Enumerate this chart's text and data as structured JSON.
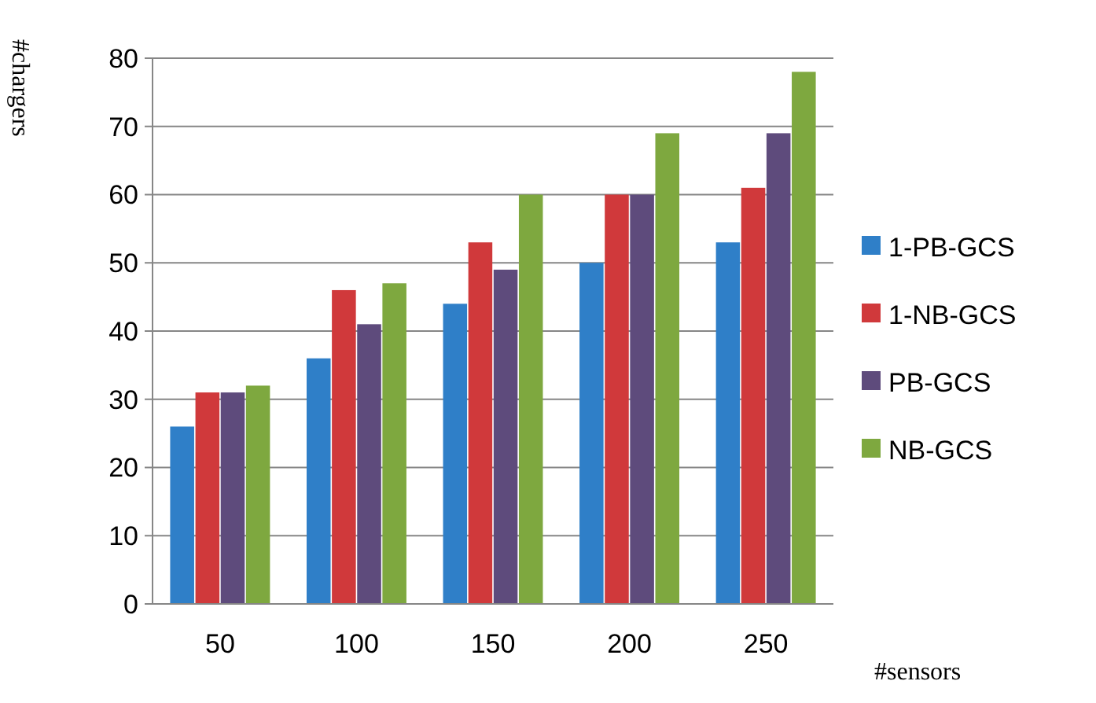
{
  "chart_data": {
    "type": "bar",
    "xlabel": "#sensors",
    "ylabel": "#chargers",
    "categories": [
      "50",
      "100",
      "150",
      "200",
      "250"
    ],
    "series": [
      {
        "name": "1-PB-GCS",
        "color": "#2f7fc8",
        "values": [
          26,
          36,
          44,
          50,
          53
        ]
      },
      {
        "name": "1-NB-GCS",
        "color": "#d0393b",
        "values": [
          31,
          46,
          53,
          60,
          61
        ]
      },
      {
        "name": "PB-GCS",
        "color": "#5e4b7c",
        "values": [
          31,
          41,
          49,
          60,
          69
        ]
      },
      {
        "name": "NB-GCS",
        "color": "#7ea83f",
        "values": [
          32,
          47,
          60,
          69,
          78
        ]
      }
    ],
    "ylim": [
      0,
      80
    ],
    "yticks": [
      0,
      10,
      20,
      30,
      40,
      50,
      60,
      70,
      80
    ],
    "grid": "y",
    "legend": "right"
  }
}
